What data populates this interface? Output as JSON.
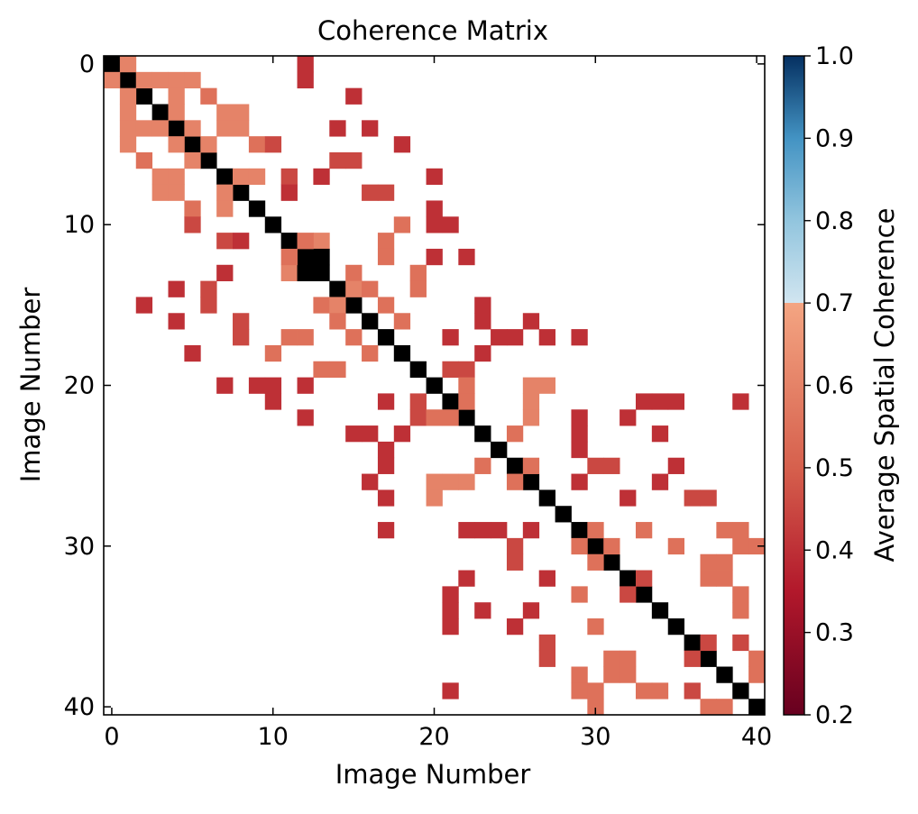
{
  "chart_data": {
    "type": "heatmap",
    "title": "Coherence Matrix",
    "xlabel": "Image Number",
    "ylabel": "Image Number",
    "x_ticks": [
      0,
      10,
      20,
      30,
      40
    ],
    "y_ticks": [
      0,
      10,
      20,
      30,
      40
    ],
    "x_range": [
      0,
      40
    ],
    "y_range": [
      0,
      40
    ],
    "y_direction": "top-to-bottom",
    "diagonal_value": 1.0,
    "diagonal_color": "#000000",
    "blank_color": "#ffffff",
    "colorbar": {
      "label": "Average Spatial Coherence",
      "min": 0.2,
      "max": 1.0,
      "ticks": [
        0.2,
        0.3,
        0.4,
        0.5,
        0.6,
        0.7,
        0.8,
        0.9,
        1.0
      ],
      "stops": [
        {
          "value": 0.2,
          "color": "#67001f"
        },
        {
          "value": 0.35,
          "color": "#b2182b"
        },
        {
          "value": 0.5,
          "color": "#d6604d"
        },
        {
          "value": 0.7,
          "color": "#f4a582"
        },
        {
          "value": 0.7001,
          "color": "#d1e5f0"
        },
        {
          "value": 0.8,
          "color": "#92c5de"
        },
        {
          "value": 0.9,
          "color": "#4393c3"
        },
        {
          "value": 1.0,
          "color": "#053061"
        }
      ]
    },
    "cells": [
      [
        0,
        0,
        1.0
      ],
      [
        1,
        1,
        1.0
      ],
      [
        2,
        2,
        1.0
      ],
      [
        3,
        3,
        1.0
      ],
      [
        4,
        4,
        1.0
      ],
      [
        5,
        5,
        1.0
      ],
      [
        6,
        6,
        1.0
      ],
      [
        7,
        7,
        1.0
      ],
      [
        8,
        8,
        1.0
      ],
      [
        9,
        9,
        1.0
      ],
      [
        10,
        10,
        1.0
      ],
      [
        11,
        11,
        1.0
      ],
      [
        12,
        12,
        1.0
      ],
      [
        13,
        13,
        1.0
      ],
      [
        14,
        14,
        1.0
      ],
      [
        15,
        15,
        1.0
      ],
      [
        16,
        16,
        1.0
      ],
      [
        17,
        17,
        1.0
      ],
      [
        18,
        18,
        1.0
      ],
      [
        19,
        19,
        1.0
      ],
      [
        20,
        20,
        1.0
      ],
      [
        21,
        21,
        1.0
      ],
      [
        22,
        22,
        1.0
      ],
      [
        23,
        23,
        1.0
      ],
      [
        24,
        24,
        1.0
      ],
      [
        25,
        25,
        1.0
      ],
      [
        26,
        26,
        1.0
      ],
      [
        27,
        27,
        1.0
      ],
      [
        28,
        28,
        1.0
      ],
      [
        29,
        29,
        1.0
      ],
      [
        30,
        30,
        1.0
      ],
      [
        31,
        31,
        1.0
      ],
      [
        32,
        32,
        1.0
      ],
      [
        33,
        33,
        1.0
      ],
      [
        34,
        34,
        1.0
      ],
      [
        35,
        35,
        1.0
      ],
      [
        36,
        36,
        1.0
      ],
      [
        37,
        37,
        1.0
      ],
      [
        38,
        38,
        1.0
      ],
      [
        39,
        39,
        1.0
      ],
      [
        40,
        40,
        1.0
      ],
      [
        1,
        0,
        0.6
      ],
      [
        0,
        1,
        0.6
      ],
      [
        12,
        0,
        0.4
      ],
      [
        12,
        1,
        0.4
      ],
      [
        2,
        1,
        0.6
      ],
      [
        3,
        1,
        0.6
      ],
      [
        4,
        1,
        0.6
      ],
      [
        5,
        1,
        0.6
      ],
      [
        1,
        2,
        0.6
      ],
      [
        1,
        3,
        0.6
      ],
      [
        1,
        4,
        0.6
      ],
      [
        1,
        5,
        0.6
      ],
      [
        4,
        2,
        0.6
      ],
      [
        6,
        2,
        0.55
      ],
      [
        15,
        2,
        0.4
      ],
      [
        2,
        4,
        0.6
      ],
      [
        2,
        6,
        0.55
      ],
      [
        2,
        15,
        0.4
      ],
      [
        4,
        3,
        0.6
      ],
      [
        7,
        3,
        0.6
      ],
      [
        8,
        3,
        0.6
      ],
      [
        3,
        4,
        0.6
      ],
      [
        3,
        7,
        0.6
      ],
      [
        3,
        8,
        0.6
      ],
      [
        5,
        4,
        0.6
      ],
      [
        7,
        4,
        0.6
      ],
      [
        8,
        4,
        0.6
      ],
      [
        14,
        4,
        0.4
      ],
      [
        16,
        4,
        0.4
      ],
      [
        4,
        5,
        0.6
      ],
      [
        4,
        7,
        0.6
      ],
      [
        4,
        8,
        0.6
      ],
      [
        4,
        14,
        0.4
      ],
      [
        4,
        16,
        0.4
      ],
      [
        6,
        5,
        0.6
      ],
      [
        9,
        5,
        0.55
      ],
      [
        10,
        5,
        0.45
      ],
      [
        18,
        5,
        0.4
      ],
      [
        5,
        6,
        0.6
      ],
      [
        5,
        9,
        0.55
      ],
      [
        5,
        10,
        0.45
      ],
      [
        5,
        18,
        0.4
      ],
      [
        14,
        6,
        0.45
      ],
      [
        15,
        6,
        0.45
      ],
      [
        6,
        14,
        0.45
      ],
      [
        6,
        15,
        0.45
      ],
      [
        8,
        7,
        0.6
      ],
      [
        9,
        7,
        0.6
      ],
      [
        11,
        7,
        0.45
      ],
      [
        13,
        7,
        0.4
      ],
      [
        20,
        7,
        0.4
      ],
      [
        7,
        8,
        0.6
      ],
      [
        7,
        9,
        0.6
      ],
      [
        7,
        11,
        0.45
      ],
      [
        7,
        13,
        0.4
      ],
      [
        7,
        20,
        0.4
      ],
      [
        11,
        8,
        0.4
      ],
      [
        16,
        8,
        0.45
      ],
      [
        17,
        8,
        0.45
      ],
      [
        8,
        11,
        0.4
      ],
      [
        8,
        16,
        0.45
      ],
      [
        8,
        17,
        0.45
      ],
      [
        20,
        9,
        0.4
      ],
      [
        9,
        20,
        0.4
      ],
      [
        18,
        10,
        0.55
      ],
      [
        20,
        10,
        0.4
      ],
      [
        21,
        10,
        0.4
      ],
      [
        10,
        18,
        0.55
      ],
      [
        10,
        20,
        0.4
      ],
      [
        10,
        21,
        0.4
      ],
      [
        13,
        11,
        0.6
      ],
      [
        17,
        11,
        0.55
      ],
      [
        11,
        13,
        0.6
      ],
      [
        11,
        17,
        0.55
      ],
      [
        13,
        12,
        1.0
      ],
      [
        12,
        13,
        1.0
      ],
      [
        11,
        12,
        0.55
      ],
      [
        17,
        12,
        0.55
      ],
      [
        20,
        12,
        0.4
      ],
      [
        22,
        12,
        0.4
      ],
      [
        12,
        11,
        0.55
      ],
      [
        12,
        17,
        0.55
      ],
      [
        12,
        20,
        0.4
      ],
      [
        12,
        22,
        0.4
      ],
      [
        15,
        13,
        0.55
      ],
      [
        19,
        13,
        0.55
      ],
      [
        13,
        15,
        0.55
      ],
      [
        13,
        19,
        0.55
      ],
      [
        15,
        14,
        0.6
      ],
      [
        16,
        14,
        0.55
      ],
      [
        19,
        14,
        0.55
      ],
      [
        14,
        15,
        0.6
      ],
      [
        14,
        16,
        0.55
      ],
      [
        14,
        19,
        0.55
      ],
      [
        17,
        15,
        0.55
      ],
      [
        23,
        15,
        0.4
      ],
      [
        15,
        17,
        0.55
      ],
      [
        15,
        23,
        0.4
      ],
      [
        18,
        16,
        0.55
      ],
      [
        23,
        16,
        0.4
      ],
      [
        26,
        16,
        0.4
      ],
      [
        16,
        18,
        0.55
      ],
      [
        16,
        23,
        0.4
      ],
      [
        16,
        26,
        0.4
      ],
      [
        21,
        17,
        0.4
      ],
      [
        24,
        17,
        0.4
      ],
      [
        25,
        17,
        0.4
      ],
      [
        27,
        17,
        0.4
      ],
      [
        29,
        17,
        0.4
      ],
      [
        17,
        21,
        0.4
      ],
      [
        17,
        24,
        0.4
      ],
      [
        17,
        25,
        0.4
      ],
      [
        17,
        27,
        0.4
      ],
      [
        17,
        29,
        0.4
      ],
      [
        23,
        18,
        0.4
      ],
      [
        18,
        23,
        0.4
      ],
      [
        21,
        19,
        0.45
      ],
      [
        22,
        19,
        0.45
      ],
      [
        19,
        21,
        0.45
      ],
      [
        19,
        22,
        0.45
      ],
      [
        22,
        20,
        0.55
      ],
      [
        26,
        20,
        0.6
      ],
      [
        27,
        20,
        0.6
      ],
      [
        20,
        22,
        0.55
      ],
      [
        20,
        26,
        0.6
      ],
      [
        20,
        27,
        0.6
      ],
      [
        22,
        21,
        0.55
      ],
      [
        26,
        21,
        0.6
      ],
      [
        33,
        21,
        0.4
      ],
      [
        34,
        21,
        0.4
      ],
      [
        35,
        21,
        0.4
      ],
      [
        39,
        21,
        0.4
      ],
      [
        21,
        22,
        0.55
      ],
      [
        21,
        26,
        0.6
      ],
      [
        21,
        33,
        0.4
      ],
      [
        21,
        34,
        0.4
      ],
      [
        21,
        35,
        0.4
      ],
      [
        21,
        39,
        0.4
      ],
      [
        26,
        22,
        0.6
      ],
      [
        29,
        22,
        0.4
      ],
      [
        32,
        22,
        0.4
      ],
      [
        22,
        26,
        0.6
      ],
      [
        22,
        29,
        0.4
      ],
      [
        22,
        32,
        0.4
      ],
      [
        25,
        23,
        0.55
      ],
      [
        29,
        23,
        0.4
      ],
      [
        34,
        23,
        0.4
      ],
      [
        23,
        25,
        0.55
      ],
      [
        23,
        29,
        0.4
      ],
      [
        23,
        34,
        0.4
      ],
      [
        29,
        24,
        0.4
      ],
      [
        24,
        29,
        0.4
      ],
      [
        30,
        25,
        0.45
      ],
      [
        31,
        25,
        0.45
      ],
      [
        35,
        25,
        0.4
      ],
      [
        25,
        30,
        0.45
      ],
      [
        25,
        31,
        0.45
      ],
      [
        25,
        35,
        0.4
      ],
      [
        26,
        25,
        0.55
      ],
      [
        25,
        26,
        0.55
      ],
      [
        29,
        26,
        0.4
      ],
      [
        34,
        26,
        0.4
      ],
      [
        26,
        29,
        0.4
      ],
      [
        26,
        34,
        0.4
      ],
      [
        32,
        27,
        0.4
      ],
      [
        36,
        27,
        0.45
      ],
      [
        37,
        27,
        0.45
      ],
      [
        27,
        32,
        0.4
      ],
      [
        27,
        36,
        0.45
      ],
      [
        27,
        37,
        0.45
      ],
      [
        30,
        29,
        0.55
      ],
      [
        33,
        29,
        0.55
      ],
      [
        38,
        29,
        0.55
      ],
      [
        39,
        29,
        0.55
      ],
      [
        29,
        30,
        0.55
      ],
      [
        29,
        33,
        0.55
      ],
      [
        29,
        38,
        0.55
      ],
      [
        29,
        39,
        0.55
      ],
      [
        31,
        30,
        0.55
      ],
      [
        35,
        30,
        0.55
      ],
      [
        39,
        30,
        0.55
      ],
      [
        40,
        30,
        0.55
      ],
      [
        30,
        31,
        0.55
      ],
      [
        30,
        35,
        0.55
      ],
      [
        30,
        39,
        0.55
      ],
      [
        30,
        40,
        0.55
      ],
      [
        37,
        31,
        0.55
      ],
      [
        38,
        31,
        0.55
      ],
      [
        31,
        37,
        0.55
      ],
      [
        31,
        38,
        0.55
      ],
      [
        33,
        32,
        0.45
      ],
      [
        37,
        32,
        0.55
      ],
      [
        38,
        32,
        0.55
      ],
      [
        32,
        33,
        0.45
      ],
      [
        32,
        37,
        0.55
      ],
      [
        32,
        38,
        0.55
      ],
      [
        39,
        33,
        0.55
      ],
      [
        33,
        39,
        0.55
      ],
      [
        39,
        34,
        0.55
      ],
      [
        34,
        39,
        0.55
      ],
      [
        37,
        36,
        0.45
      ],
      [
        39,
        36,
        0.45
      ],
      [
        36,
        37,
        0.45
      ],
      [
        36,
        39,
        0.45
      ],
      [
        40,
        37,
        0.55
      ],
      [
        37,
        40,
        0.55
      ],
      [
        40,
        38,
        0.55
      ],
      [
        38,
        40,
        0.55
      ]
    ]
  }
}
